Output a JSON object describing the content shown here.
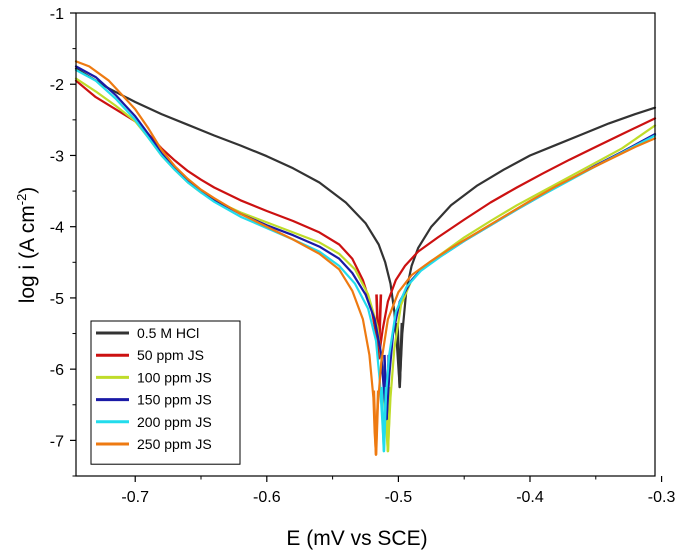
{
  "chart_data": {
    "type": "line",
    "title": "",
    "xlabel": "E (mV vs SCE)",
    "ylabel_main": "log i (A cm",
    "ylabel_sup": "-2",
    "ylabel_tail": ")",
    "xlim": [
      -0.745,
      -0.305
    ],
    "ylim": [
      -7.5,
      -1
    ],
    "xticks": [
      -0.7,
      -0.6,
      -0.5,
      -0.4,
      -0.3
    ],
    "xtick_labels": [
      "-0.7",
      "-0.6",
      "-0.5",
      "-0.4",
      "-0.3"
    ],
    "yticks": [
      -1,
      -2,
      -3,
      -4,
      -5,
      -6,
      -7
    ],
    "ytick_labels": [
      "-1",
      "-2",
      "-3",
      "-4",
      "-5",
      "-6",
      "-7"
    ],
    "grid": false,
    "legend_position": "bottom-left",
    "series": [
      {
        "name": "0.5 M HCl",
        "color": "#333333",
        "ecorr": -0.499,
        "min_y": -6.25,
        "x": [
          -0.745,
          -0.72,
          -0.7,
          -0.68,
          -0.66,
          -0.64,
          -0.62,
          -0.6,
          -0.58,
          -0.56,
          -0.54,
          -0.525,
          -0.515,
          -0.51,
          -0.506,
          -0.503,
          -0.501,
          -0.499,
          -0.497,
          -0.494,
          -0.49,
          -0.485,
          -0.475,
          -0.46,
          -0.44,
          -0.42,
          -0.4,
          -0.38,
          -0.36,
          -0.34,
          -0.32,
          -0.305
        ],
        "y": [
          -1.78,
          -2.06,
          -2.25,
          -2.42,
          -2.57,
          -2.72,
          -2.86,
          -3.01,
          -3.18,
          -3.38,
          -3.66,
          -3.95,
          -4.25,
          -4.5,
          -4.8,
          -5.2,
          -5.7,
          -6.25,
          -5.5,
          -4.9,
          -4.55,
          -4.3,
          -4.0,
          -3.7,
          -3.42,
          -3.2,
          -3.0,
          -2.85,
          -2.7,
          -2.55,
          -2.42,
          -2.33
        ]
      },
      {
        "name": "50 ppm JS",
        "color": "#cc1111",
        "ecorr": -0.515,
        "min_y": -5.85,
        "x": [
          -0.745,
          -0.73,
          -0.715,
          -0.7,
          -0.69,
          -0.68,
          -0.67,
          -0.66,
          -0.65,
          -0.64,
          -0.62,
          -0.6,
          -0.58,
          -0.56,
          -0.545,
          -0.535,
          -0.527,
          -0.521,
          -0.517,
          -0.515,
          -0.512,
          -0.508,
          -0.502,
          -0.495,
          -0.485,
          -0.47,
          -0.45,
          -0.43,
          -0.41,
          -0.39,
          -0.37,
          -0.35,
          -0.33,
          -0.305
        ],
        "y": [
          -1.95,
          -2.18,
          -2.35,
          -2.52,
          -2.7,
          -2.9,
          -3.07,
          -3.22,
          -3.34,
          -3.45,
          -3.63,
          -3.78,
          -3.92,
          -4.08,
          -4.25,
          -4.45,
          -4.75,
          -5.1,
          -5.5,
          -5.85,
          -5.45,
          -5.05,
          -4.75,
          -4.55,
          -4.35,
          -4.15,
          -3.9,
          -3.66,
          -3.45,
          -3.25,
          -3.06,
          -2.88,
          -2.7,
          -2.48
        ]
      },
      {
        "name": "100 ppm JS",
        "color": "#bfdc2a",
        "ecorr": -0.508,
        "min_y": -7.15,
        "x": [
          -0.745,
          -0.73,
          -0.715,
          -0.7,
          -0.69,
          -0.68,
          -0.67,
          -0.66,
          -0.65,
          -0.64,
          -0.62,
          -0.6,
          -0.58,
          -0.56,
          -0.545,
          -0.533,
          -0.523,
          -0.516,
          -0.512,
          -0.51,
          -0.508,
          -0.506,
          -0.503,
          -0.498,
          -0.49,
          -0.48,
          -0.465,
          -0.45,
          -0.43,
          -0.41,
          -0.39,
          -0.37,
          -0.35,
          -0.33,
          -0.305
        ],
        "y": [
          -1.92,
          -2.1,
          -2.3,
          -2.52,
          -2.75,
          -3.0,
          -3.2,
          -3.38,
          -3.52,
          -3.63,
          -3.8,
          -3.94,
          -4.08,
          -4.22,
          -4.38,
          -4.6,
          -4.95,
          -5.4,
          -6.0,
          -6.6,
          -7.15,
          -6.4,
          -5.7,
          -5.1,
          -4.75,
          -4.55,
          -4.35,
          -4.15,
          -3.92,
          -3.7,
          -3.5,
          -3.3,
          -3.1,
          -2.9,
          -2.58
        ]
      },
      {
        "name": "150 ppm JS",
        "color": "#1a1aa6",
        "ecorr": -0.509,
        "min_y": -6.7,
        "x": [
          -0.745,
          -0.73,
          -0.715,
          -0.7,
          -0.69,
          -0.68,
          -0.67,
          -0.66,
          -0.65,
          -0.64,
          -0.62,
          -0.6,
          -0.58,
          -0.56,
          -0.545,
          -0.535,
          -0.525,
          -0.518,
          -0.513,
          -0.511,
          -0.509,
          -0.507,
          -0.504,
          -0.499,
          -0.49,
          -0.48,
          -0.465,
          -0.45,
          -0.43,
          -0.41,
          -0.39,
          -0.37,
          -0.35,
          -0.33,
          -0.305
        ],
        "y": [
          -1.75,
          -1.9,
          -2.15,
          -2.45,
          -2.7,
          -2.97,
          -3.18,
          -3.35,
          -3.5,
          -3.62,
          -3.82,
          -3.98,
          -4.12,
          -4.28,
          -4.45,
          -4.65,
          -4.95,
          -5.3,
          -5.8,
          -6.3,
          -6.7,
          -6.1,
          -5.5,
          -5.05,
          -4.75,
          -4.55,
          -4.38,
          -4.2,
          -3.98,
          -3.76,
          -3.55,
          -3.34,
          -3.14,
          -2.95,
          -2.7
        ]
      },
      {
        "name": "200 ppm JS",
        "color": "#22dcec",
        "ecorr": -0.511,
        "min_y": -7.15,
        "x": [
          -0.745,
          -0.73,
          -0.715,
          -0.7,
          -0.69,
          -0.68,
          -0.67,
          -0.66,
          -0.65,
          -0.64,
          -0.62,
          -0.6,
          -0.58,
          -0.56,
          -0.545,
          -0.533,
          -0.523,
          -0.517,
          -0.514,
          -0.512,
          -0.511,
          -0.51,
          -0.507,
          -0.502,
          -0.494,
          -0.483,
          -0.468,
          -0.45,
          -0.43,
          -0.41,
          -0.39,
          -0.37,
          -0.35,
          -0.33,
          -0.305
        ],
        "y": [
          -1.8,
          -1.95,
          -2.2,
          -2.5,
          -2.75,
          -3.0,
          -3.2,
          -3.38,
          -3.52,
          -3.65,
          -3.86,
          -4.02,
          -4.18,
          -4.35,
          -4.55,
          -4.8,
          -5.15,
          -5.6,
          -6.2,
          -6.8,
          -7.15,
          -6.5,
          -5.8,
          -5.2,
          -4.85,
          -4.62,
          -4.42,
          -4.2,
          -3.98,
          -3.76,
          -3.55,
          -3.35,
          -3.15,
          -2.96,
          -2.72
        ]
      },
      {
        "name": "250 ppm JS",
        "color": "#ee7a11",
        "ecorr": -0.517,
        "min_y": -7.2,
        "x": [
          -0.745,
          -0.735,
          -0.72,
          -0.7,
          -0.69,
          -0.68,
          -0.67,
          -0.66,
          -0.65,
          -0.64,
          -0.62,
          -0.6,
          -0.58,
          -0.56,
          -0.545,
          -0.535,
          -0.527,
          -0.522,
          -0.519,
          -0.518,
          -0.517,
          -0.516,
          -0.513,
          -0.508,
          -0.5,
          -0.49,
          -0.475,
          -0.46,
          -0.44,
          -0.42,
          -0.4,
          -0.38,
          -0.36,
          -0.34,
          -0.32,
          -0.305
        ],
        "y": [
          -1.68,
          -1.75,
          -1.95,
          -2.35,
          -2.62,
          -2.92,
          -3.15,
          -3.33,
          -3.48,
          -3.6,
          -3.82,
          -4.0,
          -4.18,
          -4.38,
          -4.6,
          -4.9,
          -5.3,
          -5.8,
          -6.4,
          -6.9,
          -7.2,
          -6.6,
          -5.9,
          -5.3,
          -4.92,
          -4.68,
          -4.48,
          -4.3,
          -4.08,
          -3.86,
          -3.64,
          -3.43,
          -3.24,
          -3.06,
          -2.88,
          -2.76
        ]
      }
    ]
  }
}
